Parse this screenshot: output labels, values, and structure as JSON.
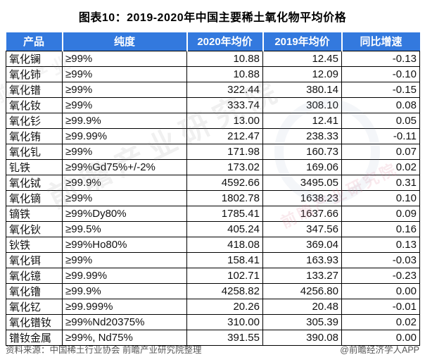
{
  "title": "图表10：2019-2020年中国主要稀土氧化物平均价格",
  "colors": {
    "header_bg": "#3379DE",
    "header_text": "#FFFFFF",
    "row_border": "#000000",
    "footer_text": "#595959"
  },
  "chart_data": {
    "type": "table",
    "title": "图表10：2019-2020年中国主要稀土氧化物平均价格",
    "columns": [
      "产品",
      "纯度",
      "2020年均价",
      "2019年均价",
      "同比增速"
    ],
    "rows": [
      [
        "氧化镧",
        "≥99%",
        "10.88",
        "12.45",
        "-0.13"
      ],
      [
        "氧化铈",
        "≥99%",
        "10.88",
        "12.09",
        "-0.10"
      ],
      [
        "氧化镨",
        "≥99%",
        "322.44",
        "380.14",
        "-0.15"
      ],
      [
        "氧化钕",
        "≥99%",
        "333.74",
        "308.10",
        "0.08"
      ],
      [
        "氧化钐",
        "≥99.9%",
        "13.00",
        "12.41",
        "0.05"
      ],
      [
        "氧化铕",
        "≥99.99%",
        "212.47",
        "238.33",
        "-0.11"
      ],
      [
        "氧化钆",
        "≥99%",
        "171.98",
        "160.73",
        "0.07"
      ],
      [
        "钆铁",
        "≥99%Gd75%+/-2%",
        "173.02",
        "169.06",
        "0.02"
      ],
      [
        "氧化铽",
        "≥99.9%",
        "4592.66",
        "3495.05",
        "0.31"
      ],
      [
        "氧化镝",
        "≥99%",
        "1802.78",
        "1638.23",
        "0.10"
      ],
      [
        "镝铁",
        "≥99%Dy80%",
        "1785.41",
        "1637.66",
        "0.09"
      ],
      [
        "氧化钬",
        "≥99.5%",
        "405.24",
        "347.56",
        "0.16"
      ],
      [
        "钬铁",
        "≥99%Ho80%",
        "418.08",
        "369.04",
        "0.13"
      ],
      [
        "氧化铒",
        "≥99%",
        "158.41",
        "163.93",
        "-0.03"
      ],
      [
        "氧化镱",
        "≥99.99%",
        "102.71",
        "133.27",
        "-0.23"
      ],
      [
        "氧化镥",
        "≥99.9%",
        "4258.82",
        "4256.80",
        "0.00"
      ],
      [
        "氧化钇",
        "≥99.999%",
        "20.26",
        "20.48",
        "-0.01"
      ],
      [
        "氧化镨钕",
        "≥99%Nd20375%",
        "310.00",
        "305.39",
        "0.02"
      ],
      [
        "镨钕金属",
        "≥99%, Nd75%",
        "391.55",
        "390.08",
        "0.00"
      ]
    ]
  },
  "footer": {
    "source": "资料来源：中国稀土行业协会 前瞻产业研究院整理",
    "brand": "@前瞻经济学人APP"
  },
  "watermarks": {
    "org": "前瞻产业研究院",
    "org_short": "前瞻产业"
  }
}
